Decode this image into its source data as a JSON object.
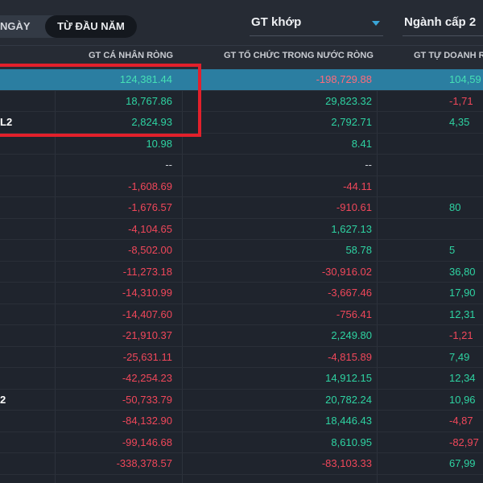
{
  "top": {
    "period_day": "NGÀY",
    "period_ytd": "TỪ ĐẦU NĂM",
    "value_type": "GT khớp",
    "sector_level": "Ngành cấp 2"
  },
  "headers": {
    "individual": "GT CÁ NHÂN RÒNG",
    "domestic_institution": "GT TỔ CHỨC TRONG NƯỚC RÒNG",
    "proprietary": "GT TỰ DOANH RÒNG"
  },
  "rows": [
    {
      "label": "",
      "individual": "124,381.44",
      "domestic": "-198,729.88",
      "proprietary": "104,59",
      "c1": "pos",
      "c2": "neg",
      "c3": "pos"
    },
    {
      "label": "",
      "individual": "18,767.86",
      "domestic": "29,823.32",
      "proprietary": "-1,71",
      "c1": "pos",
      "c2": "pos",
      "c3": "neg"
    },
    {
      "label": "L2",
      "individual": "2,824.93",
      "domestic": "2,792.71",
      "proprietary": "4,35",
      "c1": "pos",
      "c2": "pos",
      "c3": "pos"
    },
    {
      "label": "",
      "individual": "10.98",
      "domestic": "8.41",
      "proprietary": "",
      "c1": "pos",
      "c2": "pos",
      "c3": "pos"
    },
    {
      "label": "",
      "individual": "--",
      "domestic": "--",
      "proprietary": "",
      "c1": "neu",
      "c2": "neu",
      "c3": "neu"
    },
    {
      "label": "",
      "individual": "-1,608.69",
      "domestic": "-44.11",
      "proprietary": "",
      "c1": "neg",
      "c2": "neg",
      "c3": "pos"
    },
    {
      "label": "",
      "individual": "-1,676.57",
      "domestic": "-910.61",
      "proprietary": "80",
      "c1": "neg",
      "c2": "neg",
      "c3": "pos"
    },
    {
      "label": "",
      "individual": "-4,104.65",
      "domestic": "1,627.13",
      "proprietary": "",
      "c1": "neg",
      "c2": "pos",
      "c3": "pos"
    },
    {
      "label": "",
      "individual": "-8,502.00",
      "domestic": "58.78",
      "proprietary": "5",
      "c1": "neg",
      "c2": "pos",
      "c3": "pos"
    },
    {
      "label": "",
      "individual": "-11,273.18",
      "domestic": "-30,916.02",
      "proprietary": "36,80",
      "c1": "neg",
      "c2": "neg",
      "c3": "pos"
    },
    {
      "label": "",
      "individual": "-14,310.99",
      "domestic": "-3,667.46",
      "proprietary": "17,90",
      "c1": "neg",
      "c2": "neg",
      "c3": "pos"
    },
    {
      "label": "",
      "individual": "-14,407.60",
      "domestic": "-756.41",
      "proprietary": "12,31",
      "c1": "neg",
      "c2": "neg",
      "c3": "pos"
    },
    {
      "label": "",
      "individual": "-21,910.37",
      "domestic": "2,249.80",
      "proprietary": "-1,21",
      "c1": "neg",
      "c2": "pos",
      "c3": "neg"
    },
    {
      "label": "",
      "individual": "-25,631.11",
      "domestic": "-4,815.89",
      "proprietary": "7,49",
      "c1": "neg",
      "c2": "neg",
      "c3": "pos"
    },
    {
      "label": "",
      "individual": "-42,254.23",
      "domestic": "14,912.15",
      "proprietary": "12,34",
      "c1": "neg",
      "c2": "pos",
      "c3": "pos"
    },
    {
      "label": "2",
      "individual": "-50,733.79",
      "domestic": "20,782.24",
      "proprietary": "10,96",
      "c1": "neg",
      "c2": "pos",
      "c3": "pos"
    },
    {
      "label": "",
      "individual": "-84,132.90",
      "domestic": "18,446.43",
      "proprietary": "-4,87",
      "c1": "neg",
      "c2": "pos",
      "c3": "neg"
    },
    {
      "label": "",
      "individual": "-99,146.68",
      "domestic": "8,610.95",
      "proprietary": "-82,97",
      "c1": "neg",
      "c2": "pos",
      "c3": "neg"
    },
    {
      "label": "",
      "individual": "-338,378.57",
      "domestic": "-83,103.33",
      "proprietary": "67,99",
      "c1": "neg",
      "c2": "neg",
      "c3": "pos"
    }
  ],
  "colors": {
    "positive": "#2ed3a2",
    "negative": "#f0475a",
    "selected_row": "#2b7ea1",
    "annotation": "#e2202b"
  }
}
